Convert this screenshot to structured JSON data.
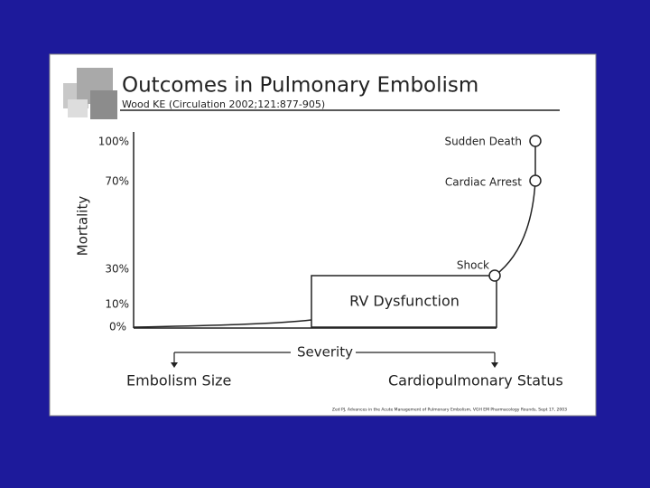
{
  "slide": {
    "title": "Outcomes in Pulmonary Embolism",
    "citation": "Wood KE (Circulation 2002;121:877-905)",
    "y_axis_label": "Mortality",
    "y_tick_labels": [
      "100%",
      "70%",
      "30%",
      "10%",
      "0%"
    ],
    "points": [
      {
        "label": "Sudden Death"
      },
      {
        "label": "Cardiac Arrest"
      },
      {
        "label": "Shock"
      }
    ],
    "box_label": "RV Dysfunction",
    "severity_label": "Severity",
    "severity_left": "Embolism Size",
    "severity_right": "Cardiopulmonary Status",
    "footnote": "Zed PJ, Advances in the Acute Management of Pulmonary Embolism, VGH EM Pharmacology Rounds, Sept 17, 2003"
  }
}
